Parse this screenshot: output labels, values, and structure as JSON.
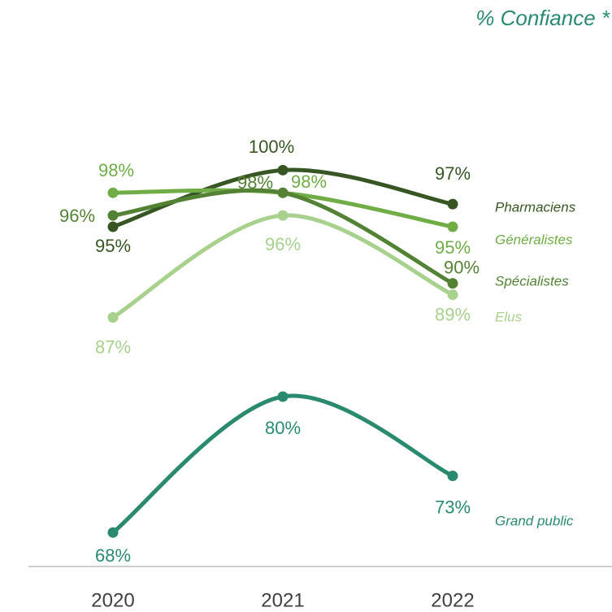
{
  "chart_data": {
    "type": "line",
    "title": "% Confiance *",
    "categories": [
      "2020",
      "2021",
      "2022"
    ],
    "ylim": [
      65,
      110
    ],
    "series": [
      {
        "name": "Pharmaciens",
        "color": "#375623",
        "values": [
          95,
          100,
          97
        ],
        "value_labels": [
          "95%",
          "100%",
          "97%"
        ]
      },
      {
        "name": "Généralistes",
        "color": "#70ad47",
        "values": [
          98,
          98,
          95
        ],
        "value_labels": [
          "98%",
          "98%",
          "95%"
        ]
      },
      {
        "name": "Spécialistes",
        "color": "#548235",
        "values": [
          96,
          98,
          90
        ],
        "value_labels": [
          "96%",
          "98%",
          "90%"
        ]
      },
      {
        "name": "Elus",
        "color": "#a9d18e",
        "values": [
          87,
          96,
          89
        ],
        "value_labels": [
          "87%",
          "96%",
          "89%"
        ]
      },
      {
        "name": "Grand public",
        "color": "#2a8a70",
        "values": [
          68,
          80,
          73
        ],
        "value_labels": [
          "68%",
          "80%",
          "73%"
        ]
      }
    ]
  }
}
